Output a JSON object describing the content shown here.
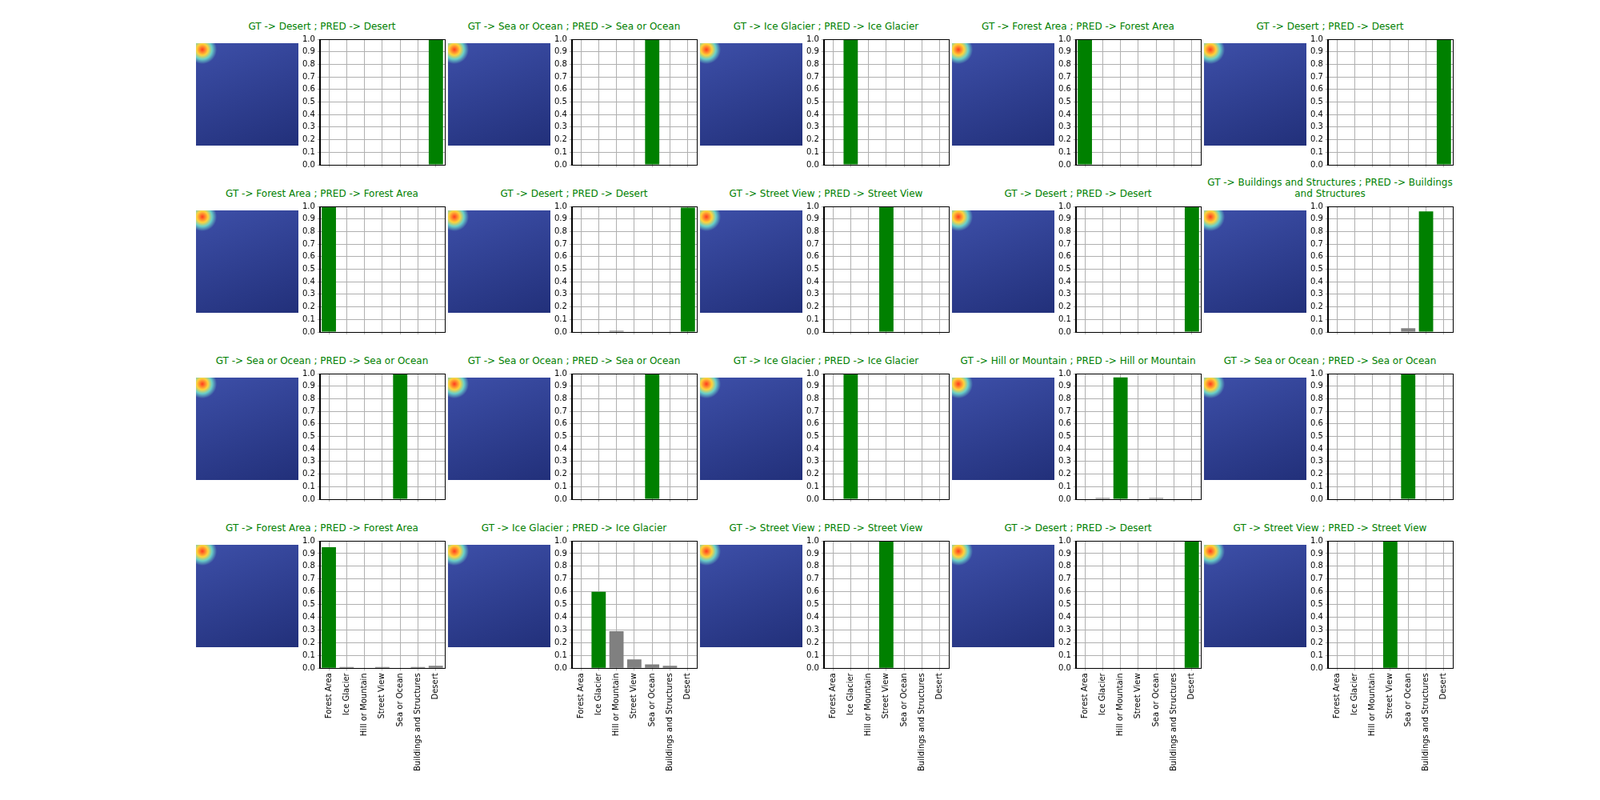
{
  "chart_data": [
    {
      "type": "bar",
      "title": "GT -> Desert ; PRED -> Desert",
      "categories": [
        "Forest Area",
        "Ice Glacier",
        "Hill or Mountain",
        "Street View",
        "Sea or Ocean",
        "Buildings and Structures",
        "Desert"
      ],
      "values": [
        0,
        0,
        0,
        0,
        0,
        0,
        1.0
      ],
      "colors": [
        "#808080",
        "#808080",
        "#808080",
        "#808080",
        "#808080",
        "#808080",
        "#008000"
      ],
      "ylim": [
        0,
        1
      ],
      "yticks": [
        {
          "value": 0,
          "label": "0.0"
        },
        0.1,
        0.2,
        0.3,
        0.4,
        0.5,
        0.6,
        0.7,
        0.8,
        0.9,
        {
          "value": 1,
          "label": "1.0"
        }
      ],
      "grid": true,
      "tick_labels": "y"
    },
    {
      "type": "bar",
      "title": "GT -> Sea or Ocean ; PRED -> Sea or Ocean",
      "categories": [
        "Forest Area",
        "Ice Glacier",
        "Hill or Mountain",
        "Street View",
        "Sea or Ocean",
        "Buildings and Structures",
        "Desert"
      ],
      "values": [
        0,
        0,
        0,
        0,
        1.0,
        0,
        0
      ],
      "colors": [
        "#808080",
        "#808080",
        "#808080",
        "#808080",
        "#008000",
        "#808080",
        "#808080"
      ],
      "ylim": [
        0,
        1
      ],
      "yticks": [
        {
          "value": 0,
          "label": "0.0"
        },
        0.1,
        0.2,
        0.3,
        0.4,
        0.5,
        0.6,
        0.7,
        0.8,
        0.9,
        {
          "value": 1,
          "label": "1.0"
        }
      ],
      "grid": true,
      "tick_labels": "y"
    },
    {
      "type": "bar",
      "title": "GT -> Ice Glacier ; PRED -> Ice Glacier",
      "categories": [
        "Forest Area",
        "Ice Glacier",
        "Hill or Mountain",
        "Street View",
        "Sea or Ocean",
        "Buildings and Structures",
        "Desert"
      ],
      "values": [
        0,
        1.0,
        0,
        0,
        0,
        0,
        0
      ],
      "colors": [
        "#808080",
        "#008000",
        "#808080",
        "#808080",
        "#808080",
        "#808080",
        "#808080"
      ],
      "ylim": [
        0,
        1
      ],
      "yticks": [
        {
          "value": 0,
          "label": "0.0"
        },
        0.1,
        0.2,
        0.3,
        0.4,
        0.5,
        0.6,
        0.7,
        0.8,
        0.9,
        {
          "value": 1,
          "label": "1.0"
        }
      ],
      "grid": true,
      "tick_labels": "y"
    },
    {
      "type": "bar",
      "title": "GT -> Forest Area ; PRED -> Forest Area",
      "categories": [
        "Forest Area",
        "Ice Glacier",
        "Hill or Mountain",
        "Street View",
        "Sea or Ocean",
        "Buildings and Structures",
        "Desert"
      ],
      "values": [
        1.0,
        0,
        0,
        0,
        0,
        0,
        0
      ],
      "colors": [
        "#008000",
        "#808080",
        "#808080",
        "#808080",
        "#808080",
        "#808080",
        "#808080"
      ],
      "ylim": [
        0,
        1
      ],
      "yticks": [
        {
          "value": 0,
          "label": "0.0"
        },
        0.1,
        0.2,
        0.3,
        0.4,
        0.5,
        0.6,
        0.7,
        0.8,
        0.9,
        {
          "value": 1,
          "label": "1.0"
        }
      ],
      "grid": true,
      "tick_labels": "y"
    },
    {
      "type": "bar",
      "title": "GT -> Desert ; PRED -> Desert",
      "categories": [
        "Forest Area",
        "Ice Glacier",
        "Hill or Mountain",
        "Street View",
        "Sea or Ocean",
        "Buildings and Structures",
        "Desert"
      ],
      "values": [
        0,
        0,
        0,
        0,
        0,
        0,
        1.0
      ],
      "colors": [
        "#808080",
        "#808080",
        "#808080",
        "#808080",
        "#808080",
        "#808080",
        "#008000"
      ],
      "ylim": [
        0,
        1
      ],
      "yticks": [
        {
          "value": 0,
          "label": "0.0"
        },
        0.1,
        0.2,
        0.3,
        0.4,
        0.5,
        0.6,
        0.7,
        0.8,
        0.9,
        {
          "value": 1,
          "label": "1.0"
        }
      ],
      "grid": true,
      "tick_labels": "y"
    },
    {
      "type": "bar",
      "title": "GT -> Forest Area ; PRED -> Forest Area",
      "categories": [
        "Forest Area",
        "Ice Glacier",
        "Hill or Mountain",
        "Street View",
        "Sea or Ocean",
        "Buildings and Structures",
        "Desert"
      ],
      "values": [
        1.0,
        0,
        0,
        0,
        0,
        0,
        0
      ],
      "colors": [
        "#008000",
        "#808080",
        "#808080",
        "#808080",
        "#808080",
        "#808080",
        "#808080"
      ],
      "ylim": [
        0,
        1
      ],
      "yticks": [
        {
          "value": 0,
          "label": "0.0"
        },
        0.1,
        0.2,
        0.3,
        0.4,
        0.5,
        0.6,
        0.7,
        0.8,
        0.9,
        {
          "value": 1,
          "label": "1.0"
        }
      ],
      "grid": true,
      "tick_labels": "y"
    },
    {
      "type": "bar",
      "title": "GT -> Desert ; PRED -> Desert",
      "categories": [
        "Forest Area",
        "Ice Glacier",
        "Hill or Mountain",
        "Street View",
        "Sea or Ocean",
        "Buildings and Structures",
        "Desert"
      ],
      "values": [
        0,
        0,
        0.01,
        0,
        0,
        0,
        0.99
      ],
      "colors": [
        "#808080",
        "#808080",
        "#808080",
        "#808080",
        "#808080",
        "#808080",
        "#008000"
      ],
      "ylim": [
        0,
        1
      ],
      "yticks": [
        {
          "value": 0,
          "label": "0.0"
        },
        0.1,
        0.2,
        0.3,
        0.4,
        0.5,
        0.6,
        0.7,
        0.8,
        0.9,
        {
          "value": 1,
          "label": "1.0"
        }
      ],
      "grid": true,
      "tick_labels": "y"
    },
    {
      "type": "bar",
      "title": "GT -> Street View ; PRED -> Street View",
      "categories": [
        "Forest Area",
        "Ice Glacier",
        "Hill or Mountain",
        "Street View",
        "Sea or Ocean",
        "Buildings and Structures",
        "Desert"
      ],
      "values": [
        0,
        0,
        0,
        1.0,
        0,
        0,
        0
      ],
      "colors": [
        "#808080",
        "#808080",
        "#808080",
        "#008000",
        "#808080",
        "#808080",
        "#808080"
      ],
      "ylim": [
        0,
        1
      ],
      "yticks": [
        {
          "value": 0,
          "label": "0.0"
        },
        0.1,
        0.2,
        0.3,
        0.4,
        0.5,
        0.6,
        0.7,
        0.8,
        0.9,
        {
          "value": 1,
          "label": "1.0"
        }
      ],
      "grid": true,
      "tick_labels": "y"
    },
    {
      "type": "bar",
      "title": "GT -> Desert ; PRED -> Desert",
      "categories": [
        "Forest Area",
        "Ice Glacier",
        "Hill or Mountain",
        "Street View",
        "Sea or Ocean",
        "Buildings and Structures",
        "Desert"
      ],
      "values": [
        0,
        0,
        0,
        0,
        0,
        0,
        1.0
      ],
      "colors": [
        "#808080",
        "#808080",
        "#808080",
        "#808080",
        "#808080",
        "#808080",
        "#008000"
      ],
      "ylim": [
        0,
        1
      ],
      "yticks": [
        {
          "value": 0,
          "label": "0.0"
        },
        0.1,
        0.2,
        0.3,
        0.4,
        0.5,
        0.6,
        0.7,
        0.8,
        0.9,
        {
          "value": 1,
          "label": "1.0"
        }
      ],
      "grid": true,
      "tick_labels": "y"
    },
    {
      "type": "bar",
      "title": "GT -> Buildings and Structures ; PRED -> Buildings and Structures",
      "categories": [
        "Forest Area",
        "Ice Glacier",
        "Hill or Mountain",
        "Street View",
        "Sea or Ocean",
        "Buildings and Structures",
        "Desert"
      ],
      "values": [
        0,
        0,
        0,
        0,
        0.03,
        0.96,
        0
      ],
      "colors": [
        "#808080",
        "#808080",
        "#808080",
        "#808080",
        "#808080",
        "#008000",
        "#808080"
      ],
      "ylim": [
        0,
        1
      ],
      "yticks": [
        {
          "value": 0,
          "label": "0.0"
        },
        0.1,
        0.2,
        0.3,
        0.4,
        0.5,
        0.6,
        0.7,
        0.8,
        0.9,
        {
          "value": 1,
          "label": "1.0"
        }
      ],
      "grid": true,
      "tick_labels": "y"
    },
    {
      "type": "bar",
      "title": "GT -> Sea or Ocean ; PRED -> Sea or Ocean",
      "categories": [
        "Forest Area",
        "Ice Glacier",
        "Hill or Mountain",
        "Street View",
        "Sea or Ocean",
        "Buildings and Structures",
        "Desert"
      ],
      "values": [
        0,
        0,
        0,
        0,
        1.0,
        0,
        0
      ],
      "colors": [
        "#808080",
        "#808080",
        "#808080",
        "#808080",
        "#008000",
        "#808080",
        "#808080"
      ],
      "ylim": [
        0,
        1
      ],
      "yticks": [
        {
          "value": 0,
          "label": "0.0"
        },
        0.1,
        0.2,
        0.3,
        0.4,
        0.5,
        0.6,
        0.7,
        0.8,
        0.9,
        {
          "value": 1,
          "label": "1.0"
        }
      ],
      "grid": true,
      "tick_labels": "y"
    },
    {
      "type": "bar",
      "title": "GT -> Sea or Ocean ; PRED -> Sea or Ocean",
      "categories": [
        "Forest Area",
        "Ice Glacier",
        "Hill or Mountain",
        "Street View",
        "Sea or Ocean",
        "Buildings and Structures",
        "Desert"
      ],
      "values": [
        0,
        0,
        0,
        0,
        1.0,
        0,
        0
      ],
      "colors": [
        "#808080",
        "#808080",
        "#808080",
        "#808080",
        "#008000",
        "#808080",
        "#808080"
      ],
      "ylim": [
        0,
        1
      ],
      "yticks": [
        {
          "value": 0,
          "label": "0.0"
        },
        0.1,
        0.2,
        0.3,
        0.4,
        0.5,
        0.6,
        0.7,
        0.8,
        0.9,
        {
          "value": 1,
          "label": "1.0"
        }
      ],
      "grid": true,
      "tick_labels": "y"
    },
    {
      "type": "bar",
      "title": "GT -> Ice Glacier ; PRED -> Ice Glacier",
      "categories": [
        "Forest Area",
        "Ice Glacier",
        "Hill or Mountain",
        "Street View",
        "Sea or Ocean",
        "Buildings and Structures",
        "Desert"
      ],
      "values": [
        0,
        1.0,
        0,
        0,
        0,
        0,
        0
      ],
      "colors": [
        "#808080",
        "#008000",
        "#808080",
        "#808080",
        "#808080",
        "#808080",
        "#808080"
      ],
      "ylim": [
        0,
        1
      ],
      "yticks": [
        {
          "value": 0,
          "label": "0.0"
        },
        0.1,
        0.2,
        0.3,
        0.4,
        0.5,
        0.6,
        0.7,
        0.8,
        0.9,
        {
          "value": 1,
          "label": "1.0"
        }
      ],
      "grid": true,
      "tick_labels": "y"
    },
    {
      "type": "bar",
      "title": "GT -> Hill or Mountain ; PRED -> Hill or Mountain",
      "categories": [
        "Forest Area",
        "Ice Glacier",
        "Hill or Mountain",
        "Street View",
        "Sea or Ocean",
        "Buildings and Structures",
        "Desert"
      ],
      "values": [
        0,
        0.01,
        0.97,
        0,
        0.01,
        0,
        0
      ],
      "colors": [
        "#808080",
        "#808080",
        "#008000",
        "#808080",
        "#808080",
        "#808080",
        "#808080"
      ],
      "ylim": [
        0,
        1
      ],
      "yticks": [
        {
          "value": 0,
          "label": "0.0"
        },
        0.1,
        0.2,
        0.3,
        0.4,
        0.5,
        0.6,
        0.7,
        0.8,
        0.9,
        {
          "value": 1,
          "label": "1.0"
        }
      ],
      "grid": true,
      "tick_labels": "y"
    },
    {
      "type": "bar",
      "title": "GT -> Sea or Ocean ; PRED -> Sea or Ocean",
      "categories": [
        "Forest Area",
        "Ice Glacier",
        "Hill or Mountain",
        "Street View",
        "Sea or Ocean",
        "Buildings and Structures",
        "Desert"
      ],
      "values": [
        0,
        0,
        0,
        0,
        1.0,
        0,
        0
      ],
      "colors": [
        "#808080",
        "#808080",
        "#808080",
        "#808080",
        "#008000",
        "#808080",
        "#808080"
      ],
      "ylim": [
        0,
        1
      ],
      "yticks": [
        {
          "value": 0,
          "label": "0.0"
        },
        0.1,
        0.2,
        0.3,
        0.4,
        0.5,
        0.6,
        0.7,
        0.8,
        0.9,
        {
          "value": 1,
          "label": "1.0"
        }
      ],
      "grid": true,
      "tick_labels": "y"
    },
    {
      "type": "bar",
      "title": "GT -> Forest Area ; PRED -> Forest Area",
      "categories": [
        "Forest Area",
        "Ice Glacier",
        "Hill or Mountain",
        "Street View",
        "Sea or Ocean",
        "Buildings and Structures",
        "Desert"
      ],
      "values": [
        0.95,
        0.01,
        0,
        0.01,
        0,
        0.01,
        0.02
      ],
      "colors": [
        "#008000",
        "#808080",
        "#808080",
        "#808080",
        "#808080",
        "#808080",
        "#808080"
      ],
      "ylim": [
        0,
        1
      ],
      "yticks": [
        {
          "value": 0,
          "label": "0.0"
        },
        0.1,
        0.2,
        0.3,
        0.4,
        0.5,
        0.6,
        0.7,
        0.8,
        0.9,
        {
          "value": 1,
          "label": "1.0"
        }
      ],
      "grid": true
    },
    {
      "type": "bar",
      "title": "GT -> Ice Glacier ; PRED -> Ice Glacier",
      "categories": [
        "Forest Area",
        "Ice Glacier",
        "Hill or Mountain",
        "Street View",
        "Sea or Ocean",
        "Buildings and Structures",
        "Desert"
      ],
      "values": [
        0,
        0.6,
        0.29,
        0.07,
        0.03,
        0.02,
        0
      ],
      "colors": [
        "#808080",
        "#008000",
        "#808080",
        "#808080",
        "#808080",
        "#808080",
        "#808080"
      ],
      "ylim": [
        0,
        1
      ],
      "yticks": [
        {
          "value": 0,
          "label": "0.0"
        },
        0.1,
        0.2,
        0.3,
        0.4,
        0.5,
        0.6,
        0.7,
        0.8,
        0.9,
        {
          "value": 1,
          "label": "1.0"
        }
      ],
      "grid": true
    },
    {
      "type": "bar",
      "title": "GT -> Street View ; PRED -> Street View",
      "categories": [
        "Forest Area",
        "Ice Glacier",
        "Hill or Mountain",
        "Street View",
        "Sea or Ocean",
        "Buildings and Structures",
        "Desert"
      ],
      "values": [
        0,
        0,
        0,
        1.0,
        0,
        0,
        0
      ],
      "colors": [
        "#808080",
        "#808080",
        "#808080",
        "#008000",
        "#808080",
        "#808080",
        "#808080"
      ],
      "ylim": [
        0,
        1
      ],
      "yticks": [
        {
          "value": 0,
          "label": "0.0"
        },
        0.1,
        0.2,
        0.3,
        0.4,
        0.5,
        0.6,
        0.7,
        0.8,
        0.9,
        {
          "value": 1,
          "label": "1.0"
        }
      ],
      "grid": true
    },
    {
      "type": "bar",
      "title": "GT -> Desert ; PRED -> Desert",
      "categories": [
        "Forest Area",
        "Ice Glacier",
        "Hill or Mountain",
        "Street View",
        "Sea or Ocean",
        "Buildings and Structures",
        "Desert"
      ],
      "values": [
        0,
        0,
        0,
        0,
        0,
        0,
        1.0
      ],
      "colors": [
        "#808080",
        "#808080",
        "#808080",
        "#808080",
        "#808080",
        "#808080",
        "#008000"
      ],
      "ylim": [
        0,
        1
      ],
      "yticks": [
        {
          "value": 0,
          "label": "0.0"
        },
        0.1,
        0.2,
        0.3,
        0.4,
        0.5,
        0.6,
        0.7,
        0.8,
        0.9,
        {
          "value": 1,
          "label": "1.0"
        }
      ],
      "grid": true
    },
    {
      "type": "bar",
      "title": "GT -> Street View ; PRED -> Street View",
      "categories": [
        "Forest Area",
        "Ice Glacier",
        "Hill or Mountain",
        "Street View",
        "Sea or Ocean",
        "Buildings and Structures",
        "Desert"
      ],
      "values": [
        0,
        0,
        0,
        1.0,
        0,
        0,
        0
      ],
      "colors": [
        "#808080",
        "#808080",
        "#808080",
        "#008000",
        "#808080",
        "#808080",
        "#808080"
      ],
      "ylim": [
        0,
        1
      ],
      "yticks": [
        {
          "value": 0,
          "label": "0.0"
        },
        0.1,
        0.2,
        0.3,
        0.4,
        0.5,
        0.6,
        0.7,
        0.8,
        0.9,
        {
          "value": 1,
          "label": "1.0"
        }
      ],
      "grid": true
    }
  ]
}
